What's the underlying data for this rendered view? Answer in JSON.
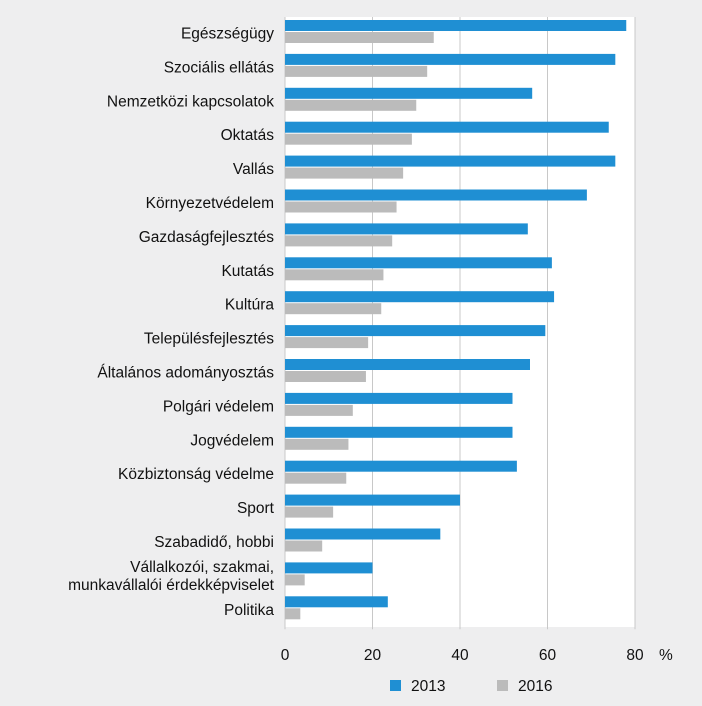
{
  "colors": {
    "background": "#eeeeef",
    "plot_background": "#ffffff",
    "series_2013": "#1f8fd3",
    "series_2016": "#bbbbbb",
    "gridline": "#c8c8c8"
  },
  "chart_data": {
    "type": "bar",
    "orientation": "horizontal",
    "categories": [
      [
        "Egészségügy"
      ],
      [
        "Szociális ellátás"
      ],
      [
        "Nemzetközi kapcsolatok"
      ],
      [
        "Oktatás"
      ],
      [
        "Vallás"
      ],
      [
        "Környezetvédelem"
      ],
      [
        "Gazdaságfejlesztés"
      ],
      [
        "Kutatás"
      ],
      [
        "Kultúra"
      ],
      [
        "Településfejlesztés"
      ],
      [
        "Általános adományosztás"
      ],
      [
        "Polgári védelem"
      ],
      [
        "Jogvédelem"
      ],
      [
        "Közbiztonság védelme"
      ],
      [
        "Sport"
      ],
      [
        "Szabadidő, hobbi"
      ],
      [
        "Vállalkozói, szakmai,",
        "munkavállalói érdekképviselet"
      ],
      [
        "Politika"
      ]
    ],
    "series": [
      {
        "name": "2013",
        "values": [
          78,
          75.5,
          56.5,
          74,
          75.5,
          69,
          55.5,
          61,
          61.5,
          59.5,
          56,
          52,
          52,
          53,
          40,
          35.5,
          20,
          23.5
        ]
      },
      {
        "name": "2016",
        "values": [
          34,
          32.5,
          30,
          29,
          27,
          25.5,
          24.5,
          22.5,
          22,
          19,
          18.5,
          15.5,
          14.5,
          14,
          11,
          8.5,
          4.5,
          3.5
        ]
      }
    ],
    "xlim": [
      0,
      80
    ],
    "xticks": [
      "0",
      "20",
      "40",
      "60",
      "80"
    ],
    "unit": "%",
    "grid": "vertical",
    "legend": "bottom"
  }
}
